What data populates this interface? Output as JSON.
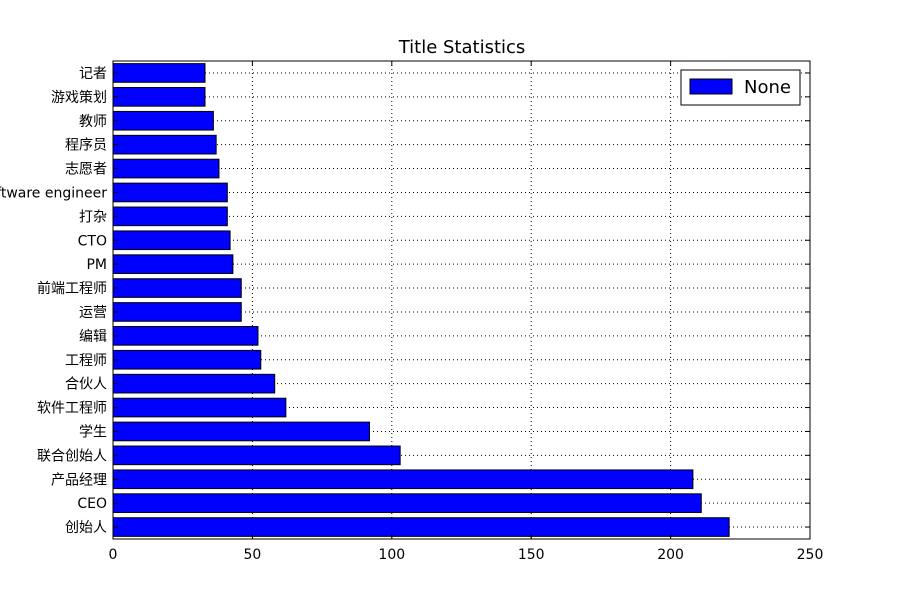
{
  "chart_data": {
    "type": "bar",
    "orientation": "horizontal",
    "title": "Title Statistics",
    "xlabel": "",
    "ylabel": "",
    "xlim": [
      0,
      250
    ],
    "xticks": [
      0,
      50,
      100,
      150,
      200,
      250
    ],
    "grid": true,
    "legend": {
      "position": "top-right",
      "entries": [
        "None"
      ]
    },
    "bar_color": "#0000ff",
    "categories": [
      "创始人",
      "CEO",
      "产品经理",
      "联合创始人",
      "学生",
      "软件工程师",
      "合伙人",
      "工程师",
      "编辑",
      "运营",
      "前端工程师",
      "PM",
      "CTO",
      "打杂",
      "software engineer",
      "志愿者",
      "程序员",
      "教师",
      "游戏策划",
      "记者"
    ],
    "values": [
      221,
      211,
      208,
      103,
      92,
      62,
      58,
      53,
      52,
      46,
      46,
      43,
      42,
      41,
      41,
      38,
      37,
      36,
      33,
      33
    ]
  }
}
